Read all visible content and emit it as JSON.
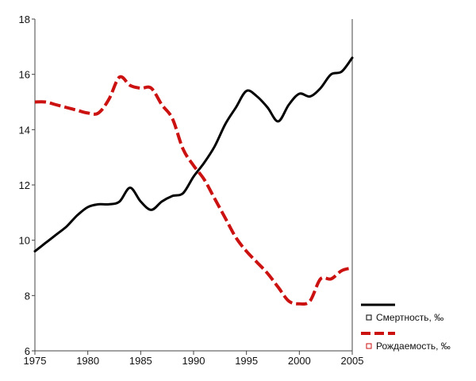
{
  "chart_data": {
    "type": "line",
    "title": "",
    "xlabel": "",
    "ylabel": "",
    "xlim": [
      1975,
      2005
    ],
    "ylim": [
      6,
      18
    ],
    "xticks": [
      "1975",
      "1980",
      "1985",
      "1990",
      "1995",
      "2000",
      "2005"
    ],
    "yticks": [
      "6",
      "8",
      "10",
      "12",
      "14",
      "16",
      "18"
    ],
    "grid": false,
    "legend_position": "bottom-right",
    "series": [
      {
        "name": "Смертность, ‰",
        "color": "#000000",
        "style": "solid",
        "x": [
          1975,
          1976,
          1977,
          1978,
          1979,
          1980,
          1981,
          1982,
          1983,
          1984,
          1985,
          1986,
          1987,
          1988,
          1989,
          1990,
          1991,
          1992,
          1993,
          1994,
          1995,
          1996,
          1997,
          1998,
          1999,
          2000,
          2001,
          2002,
          2003,
          2004,
          2005
        ],
        "y": [
          9.6,
          9.9,
          10.2,
          10.5,
          10.9,
          11.2,
          11.3,
          11.3,
          11.4,
          11.9,
          11.4,
          11.1,
          11.4,
          11.6,
          11.7,
          12.3,
          12.8,
          13.4,
          14.2,
          14.8,
          15.4,
          15.2,
          14.8,
          14.3,
          14.9,
          15.3,
          15.2,
          15.5,
          16.0,
          16.1,
          16.6
        ]
      },
      {
        "name": "Рождаемость, ‰",
        "color": "#cc1111",
        "style": "dashed",
        "x": [
          1975,
          1976,
          1977,
          1978,
          1979,
          1980,
          1981,
          1982,
          1983,
          1984,
          1985,
          1986,
          1987,
          1988,
          1989,
          1990,
          1991,
          1992,
          1993,
          1994,
          1995,
          1996,
          1997,
          1998,
          1999,
          2000,
          2001,
          2002,
          2003,
          2004,
          2005
        ],
        "y": [
          15.0,
          15.0,
          14.9,
          14.8,
          14.7,
          14.6,
          14.6,
          15.1,
          15.9,
          15.6,
          15.5,
          15.5,
          14.9,
          14.4,
          13.3,
          12.7,
          12.2,
          11.5,
          10.8,
          10.1,
          9.6,
          9.2,
          8.8,
          8.3,
          7.8,
          7.7,
          7.8,
          8.6,
          8.6,
          8.9,
          9.0
        ]
      }
    ]
  }
}
